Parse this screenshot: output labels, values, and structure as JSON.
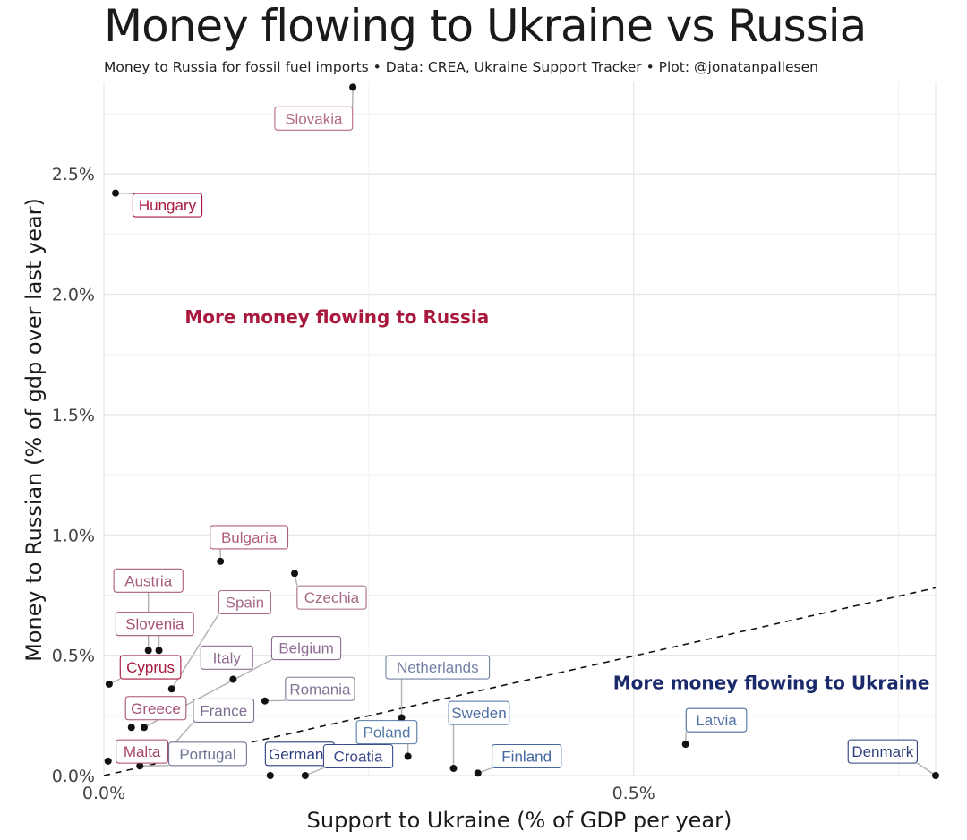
{
  "title": "Money flowing to Ukraine vs Russia",
  "subtitle": "Money to Russia for fossil fuel imports • Data: CREA, Ukraine Support Tracker • Plot: @jonatanpallesen",
  "colors": {
    "russia": "#a8193d",
    "ukraine": "#1b2a6b",
    "point": "#111111",
    "grid": "#e6e6e6"
  },
  "chart_data": {
    "type": "scatter",
    "title": "Money flowing to Ukraine vs Russia",
    "xlabel": "Support to Ukraine (% of GDP per year)",
    "ylabel": "Money to Russian (% of gdp over last year)",
    "xlim": [
      0,
      0.785
    ],
    "ylim": [
      0,
      2.88
    ],
    "x_ticks": [
      {
        "v": 0.0,
        "label": "0.0%"
      },
      {
        "v": 0.5,
        "label": "0.5%"
      }
    ],
    "y_ticks": [
      {
        "v": 0.0,
        "label": "0.0%"
      },
      {
        "v": 0.5,
        "label": "0.5%"
      },
      {
        "v": 1.0,
        "label": "1.0%"
      },
      {
        "v": 1.5,
        "label": "1.5%"
      },
      {
        "v": 2.0,
        "label": "2.0%"
      },
      {
        "v": 2.5,
        "label": "2.5%"
      }
    ],
    "grid": true,
    "reference_line": {
      "type": "dashed",
      "from": [
        0,
        0
      ],
      "to": [
        0.785,
        0.78
      ]
    },
    "annotations": [
      {
        "text": "More money flowing to Russia",
        "x": 0.22,
        "y": 1.88,
        "side": "russia"
      },
      {
        "text": "More money flowing to Ukraine",
        "x": 0.63,
        "y": 0.36,
        "side": "ukraine"
      }
    ],
    "points": [
      {
        "name": "Slovakia",
        "x": 0.235,
        "y": 2.86,
        "lx": 0.198,
        "ly": 2.73,
        "color": "#b46a85"
      },
      {
        "name": "Hungary",
        "x": 0.011,
        "y": 2.42,
        "lx": 0.06,
        "ly": 2.37,
        "color": "#a8193d"
      },
      {
        "name": "Bulgaria",
        "x": 0.11,
        "y": 0.89,
        "lx": 0.137,
        "ly": 0.99,
        "color": "#b05c7c"
      },
      {
        "name": "Czechia",
        "x": 0.18,
        "y": 0.84,
        "lx": 0.215,
        "ly": 0.74,
        "color": "#a86a87"
      },
      {
        "name": "Austria",
        "x": 0.042,
        "y": 0.52,
        "lx": 0.042,
        "ly": 0.81,
        "color": "#a85d7e"
      },
      {
        "name": "Slovenia",
        "x": 0.052,
        "y": 0.52,
        "lx": 0.048,
        "ly": 0.63,
        "color": "#a8547a"
      },
      {
        "name": "Spain",
        "x": 0.064,
        "y": 0.36,
        "lx": 0.133,
        "ly": 0.72,
        "color": "#a86a8a"
      },
      {
        "name": "Cyprus",
        "x": 0.005,
        "y": 0.38,
        "lx": 0.044,
        "ly": 0.45,
        "color": "#a8193d"
      },
      {
        "name": "Italy",
        "x": 0.122,
        "y": 0.4,
        "lx": 0.116,
        "ly": 0.49,
        "color": "#8f6e90"
      },
      {
        "name": "Belgium",
        "x": 0.038,
        "y": 0.2,
        "lx": 0.191,
        "ly": 0.53,
        "color": "#8e6e92"
      },
      {
        "name": "Romania",
        "x": 0.152,
        "y": 0.31,
        "lx": 0.204,
        "ly": 0.36,
        "color": "#857396"
      },
      {
        "name": "Greece",
        "x": 0.026,
        "y": 0.2,
        "lx": 0.049,
        "ly": 0.28,
        "color": "#a6507a"
      },
      {
        "name": "France",
        "x": 0.064,
        "y": 0.12,
        "lx": 0.113,
        "ly": 0.27,
        "color": "#7e6e92"
      },
      {
        "name": "Malta",
        "x": 0.004,
        "y": 0.06,
        "lx": 0.036,
        "ly": 0.1,
        "color": "#a84566"
      },
      {
        "name": "Portugal",
        "x": 0.034,
        "y": 0.04,
        "lx": 0.098,
        "ly": 0.09,
        "color": "#6f7496"
      },
      {
        "name": "Germany",
        "x": 0.157,
        "y": 0.0,
        "lx": 0.185,
        "ly": 0.09,
        "color": "#2d3e7e"
      },
      {
        "name": "Croatia",
        "x": 0.19,
        "y": 0.0,
        "lx": 0.24,
        "ly": 0.08,
        "color": "#3a4a8a"
      },
      {
        "name": "Poland",
        "x": 0.287,
        "y": 0.08,
        "lx": 0.267,
        "ly": 0.18,
        "color": "#557aa6"
      },
      {
        "name": "Netherlands",
        "x": 0.281,
        "y": 0.24,
        "lx": 0.315,
        "ly": 0.45,
        "color": "#7580a6"
      },
      {
        "name": "Sweden",
        "x": 0.33,
        "y": 0.03,
        "lx": 0.354,
        "ly": 0.26,
        "color": "#4d6ea3"
      },
      {
        "name": "Finland",
        "x": 0.353,
        "y": 0.01,
        "lx": 0.399,
        "ly": 0.08,
        "color": "#44679e"
      },
      {
        "name": "Latvia",
        "x": 0.549,
        "y": 0.13,
        "lx": 0.578,
        "ly": 0.23,
        "color": "#4d6ea3"
      },
      {
        "name": "Denmark",
        "x": 0.785,
        "y": 0.0,
        "lx": 0.735,
        "ly": 0.1,
        "color": "#2d3e7e"
      }
    ]
  }
}
